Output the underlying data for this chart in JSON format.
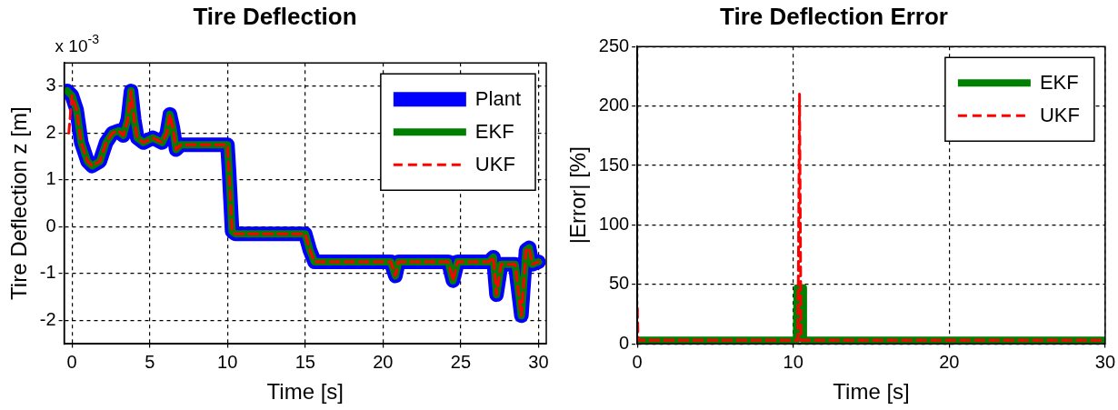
{
  "chart_data": [
    {
      "type": "line",
      "title": "Tire Deflection",
      "xlabel": "Time [s]",
      "ylabel": "Tire Deflection z [m]",
      "annotations": [
        "x 10$^{-3}$"
      ],
      "xlim": [
        -0.5,
        30.5
      ],
      "xticks": [
        0,
        5,
        10,
        15,
        20,
        25,
        30
      ],
      "ylim": [
        -2.5,
        3.5
      ],
      "yticks": [
        -2,
        -1,
        0,
        1,
        2,
        3
      ],
      "grid": true,
      "legend": "top right",
      "series": [
        {
          "name": "Plant",
          "color": "#0000ff",
          "line_style": "solid",
          "x": [
            -0.3,
            0,
            0.3,
            0.6,
            1,
            1.3,
            1.8,
            2.2,
            2.6,
            3,
            3.3,
            3.6,
            3.8,
            4.0,
            4.2,
            4.6,
            5.2,
            5.8,
            6.1,
            6.3,
            6.5,
            6.7,
            7,
            10,
            10.1,
            10.3,
            10.5,
            15,
            15.3,
            15.6,
            20.5,
            20.8,
            21,
            24.2,
            24.5,
            24.8,
            26.8,
            27.1,
            27.3,
            27.6,
            28.5,
            28.9,
            29.2,
            29.4,
            29.6,
            30
          ],
          "values": [
            2.9,
            2.8,
            2.5,
            1.8,
            1.4,
            1.3,
            1.4,
            1.8,
            2.0,
            2.05,
            1.95,
            2.3,
            2.9,
            2.3,
            1.9,
            1.8,
            1.9,
            1.8,
            2.0,
            2.4,
            2.1,
            1.65,
            1.75,
            1.75,
            1.2,
            -0.1,
            -0.15,
            -0.15,
            -0.5,
            -0.75,
            -0.75,
            -1.05,
            -0.75,
            -0.75,
            -1.15,
            -0.75,
            -0.75,
            -0.65,
            -1.45,
            -0.8,
            -0.8,
            -1.9,
            -0.5,
            -0.45,
            -0.8,
            -0.75
          ]
        },
        {
          "name": "EKF",
          "color": "#008000",
          "line_style": "solid",
          "x": [
            -0.3,
            0,
            0.3,
            0.6,
            1,
            1.3,
            1.8,
            2.2,
            2.6,
            3,
            3.3,
            3.6,
            3.8,
            4.0,
            4.2,
            4.6,
            5.2,
            5.8,
            6.1,
            6.3,
            6.5,
            6.7,
            7,
            10,
            10.1,
            10.3,
            10.5,
            15,
            15.3,
            15.6,
            20.5,
            20.8,
            21,
            24.2,
            24.5,
            24.8,
            26.8,
            27.1,
            27.3,
            27.6,
            28.5,
            28.9,
            29.2,
            29.4,
            29.6,
            30
          ],
          "values": [
            2.9,
            2.8,
            2.5,
            1.8,
            1.4,
            1.3,
            1.4,
            1.8,
            2.0,
            2.05,
            1.95,
            2.3,
            2.9,
            2.3,
            1.9,
            1.8,
            1.9,
            1.8,
            2.0,
            2.4,
            2.1,
            1.65,
            1.75,
            1.75,
            1.2,
            -0.1,
            -0.15,
            -0.15,
            -0.5,
            -0.75,
            -0.75,
            -1.05,
            -0.75,
            -0.75,
            -1.15,
            -0.75,
            -0.75,
            -0.65,
            -1.45,
            -0.8,
            -0.8,
            -1.9,
            -0.5,
            -0.45,
            -0.8,
            -0.75
          ]
        },
        {
          "name": "UKF",
          "color": "#ff0000",
          "line_style": "dashed",
          "x": [
            -0.2,
            0,
            0.3,
            0.6,
            1,
            1.3,
            1.8,
            2.2,
            2.6,
            3,
            3.3,
            3.6,
            3.8,
            4.0,
            4.2,
            4.6,
            5.2,
            5.8,
            6.1,
            6.3,
            6.5,
            6.7,
            7,
            10,
            10.1,
            10.3,
            10.5,
            15,
            15.3,
            15.6,
            20.5,
            20.8,
            21,
            24.2,
            24.5,
            24.8,
            26.8,
            27.1,
            27.3,
            27.6,
            28.5,
            28.9,
            29.2,
            29.4,
            29.6,
            30
          ],
          "values": [
            2.0,
            2.8,
            2.5,
            1.8,
            1.4,
            1.3,
            1.4,
            1.8,
            2.0,
            2.05,
            1.95,
            2.3,
            2.9,
            2.3,
            1.9,
            1.8,
            1.9,
            1.8,
            2.0,
            2.4,
            2.1,
            1.65,
            1.75,
            1.75,
            1.2,
            -0.1,
            -0.15,
            -0.15,
            -0.5,
            -0.75,
            -0.75,
            -1.05,
            -0.75,
            -0.75,
            -1.15,
            -0.75,
            -0.75,
            -0.65,
            -1.45,
            -0.8,
            -0.8,
            -1.9,
            -0.5,
            -0.45,
            -0.8,
            -0.75
          ]
        }
      ]
    },
    {
      "type": "line",
      "title": "Tire Deflection Error",
      "xlabel": "Time [s]",
      "ylabel": "|Error| [%]",
      "xlim": [
        0,
        30
      ],
      "xticks": [
        0,
        10,
        20,
        30
      ],
      "ylim": [
        0,
        250
      ],
      "yticks": [
        0,
        50,
        100,
        150,
        200,
        250
      ],
      "grid": true,
      "legend": "top right",
      "series": [
        {
          "name": "EKF",
          "color": "#008000",
          "line_style": "solid",
          "x": [
            0,
            10.2,
            10.25,
            10.6,
            10.65,
            30
          ],
          "values": [
            3,
            3,
            47,
            47,
            3,
            3
          ]
        },
        {
          "name": "UKF",
          "color": "#ff0000",
          "line_style": "dashed",
          "x": [
            0,
            0.05,
            10.3,
            10.4,
            10.5,
            30
          ],
          "values": [
            30,
            3,
            3,
            210,
            3,
            3
          ]
        }
      ]
    }
  ]
}
